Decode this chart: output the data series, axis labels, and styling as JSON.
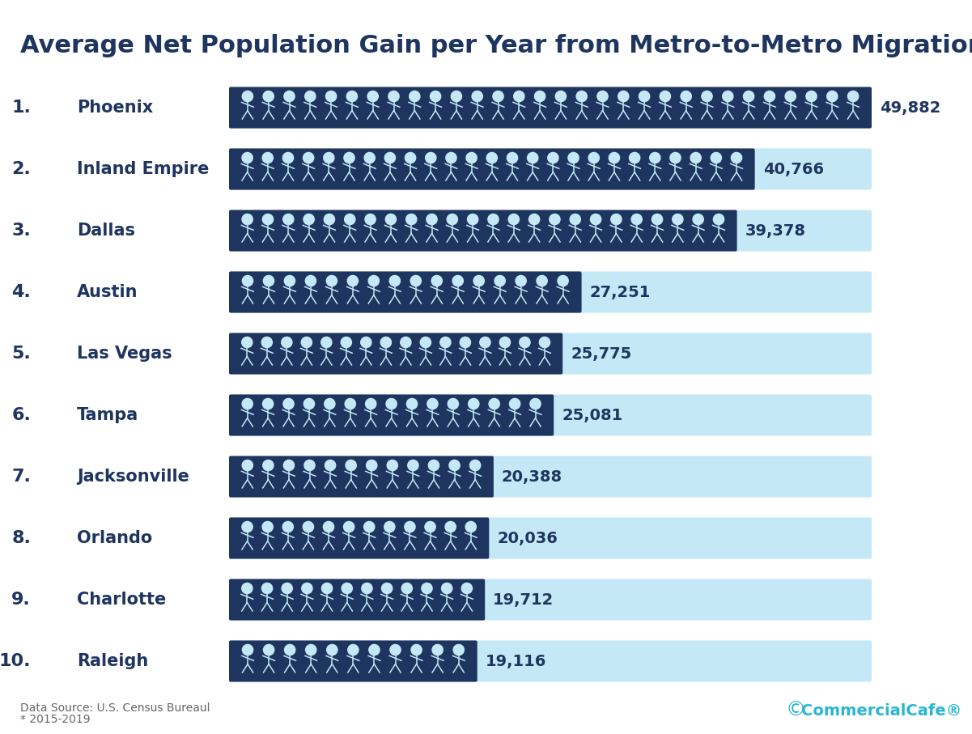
{
  "title": "Average Net Population Gain per Year from Metro-to-Metro Migration*",
  "categories": [
    "Phoenix",
    "Inland Empire",
    "Dallas",
    "Austin",
    "Las Vegas",
    "Tampa",
    "Jacksonville",
    "Orlando",
    "Charlotte",
    "Raleigh"
  ],
  "ranks": [
    1,
    2,
    3,
    4,
    5,
    6,
    7,
    8,
    9,
    10
  ],
  "values": [
    49882,
    40766,
    39378,
    27251,
    25775,
    25081,
    20388,
    20036,
    19712,
    19116
  ],
  "max_value": 49882,
  "dark_bar_color": "#1e3560",
  "light_bar_color": "#c5e8f7",
  "title_color": "#1e3560",
  "label_color": "#1e3560",
  "value_color": "#1e3560",
  "icon_color": "#c5e8f7",
  "background": "#ffffff",
  "footnote1": "Data Source: U.S. Census Bureaul",
  "footnote2": "* 2015-2019",
  "brand_text": "CommercialCafe®",
  "brand_color": "#29b6d1",
  "figure_width": 12.01,
  "figure_height": 9.07,
  "dpi": 100
}
